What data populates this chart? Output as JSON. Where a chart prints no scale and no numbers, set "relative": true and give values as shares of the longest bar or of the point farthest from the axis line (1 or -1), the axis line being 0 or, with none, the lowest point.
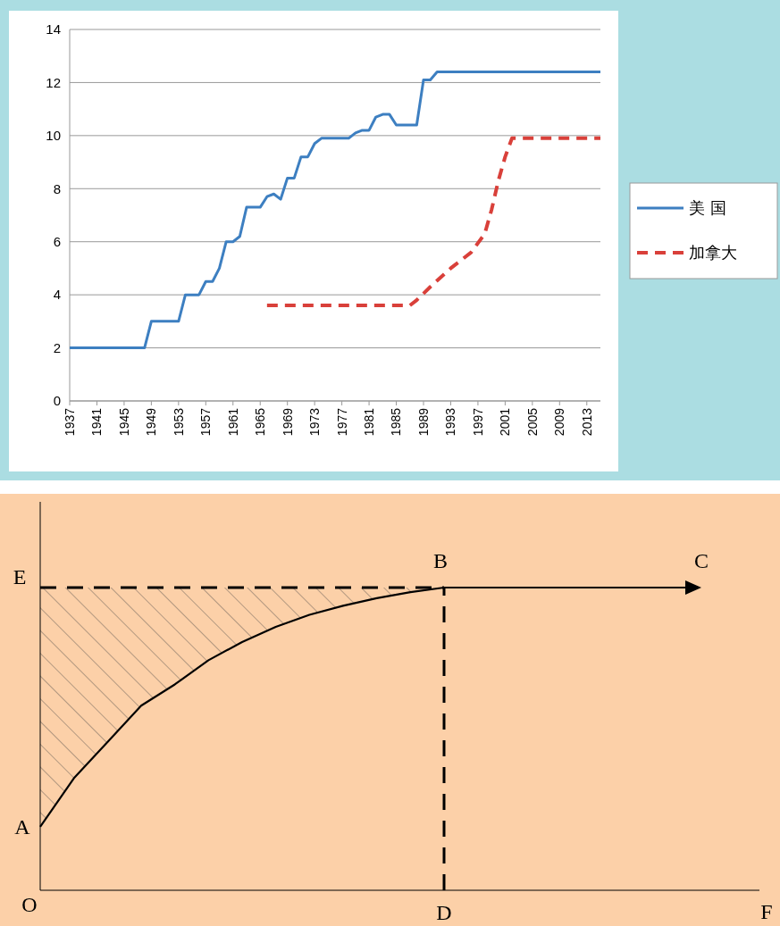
{
  "chart_data": [
    {
      "type": "line",
      "xlim": [
        1937,
        2015
      ],
      "xticks": [
        1937,
        1941,
        1945,
        1949,
        1953,
        1957,
        1961,
        1965,
        1969,
        1973,
        1977,
        1981,
        1985,
        1989,
        1993,
        1997,
        2001,
        2005,
        2009,
        2013
      ],
      "ylim": [
        0,
        14
      ],
      "yticks": [
        0,
        2,
        4,
        6,
        8,
        10,
        12,
        14
      ],
      "grid": "y",
      "legend": "right",
      "series": [
        {
          "name": "美 国",
          "color": "#3d7fc1",
          "line_style": "solid",
          "x": [
            1937,
            1948,
            1949,
            1953,
            1954,
            1956,
            1957,
            1958,
            1959,
            1960,
            1961,
            1962,
            1963,
            1965,
            1966,
            1967,
            1968,
            1969,
            1970,
            1971,
            1972,
            1973,
            1974,
            1978,
            1979,
            1980,
            1981,
            1982,
            1983,
            1984,
            1985,
            1988,
            1989,
            1990,
            1991,
            2015
          ],
          "values": [
            2,
            2,
            3,
            3,
            4,
            4,
            4.5,
            4.5,
            5,
            6,
            6,
            6.2,
            7.3,
            7.3,
            7.7,
            7.8,
            7.6,
            8.4,
            8.4,
            9.2,
            9.2,
            9.7,
            9.9,
            9.9,
            10.1,
            10.2,
            10.2,
            10.7,
            10.8,
            10.8,
            10.4,
            10.4,
            12.1,
            12.1,
            12.4,
            12.4
          ]
        },
        {
          "name": "加拿大",
          "color": "#d9403a",
          "line_style": "dashed",
          "x": [
            1966,
            1987,
            1988,
            1990,
            1993,
            1996,
            1998,
            1999,
            2000,
            2001,
            2002,
            2015
          ],
          "values": [
            3.6,
            3.6,
            3.8,
            4.3,
            5,
            5.6,
            6.3,
            7.2,
            8.3,
            9.2,
            9.9,
            9.9
          ]
        }
      ]
    },
    {
      "type": "line",
      "relative": true,
      "categories": [
        null,
        null,
        null,
        null,
        null,
        null,
        null,
        null,
        null,
        null,
        null,
        null,
        null
      ],
      "series": [
        {
          "color": "#000000",
          "values": [
            0.21,
            0.37,
            0.49,
            0.61,
            0.68,
            0.76,
            0.82,
            0.87,
            0.91,
            0.94,
            0.965,
            0.985,
            1
          ],
          "lower": [
            0.21,
            0.37,
            0.49,
            0.61,
            0.68,
            0.76,
            0.82,
            0.87,
            0.91,
            0.94,
            0.965,
            0.985,
            1
          ],
          "upper": [
            1,
            1,
            1,
            1,
            1,
            1,
            1,
            1,
            1,
            1,
            1,
            1,
            1
          ]
        }
      ],
      "ref_lines": [
        {
          "axis": "y",
          "value": 1,
          "label": "E",
          "line_style": "dashed"
        }
      ],
      "annotations": [
        "A",
        "B",
        "C",
        "D",
        "O",
        "F"
      ]
    }
  ]
}
